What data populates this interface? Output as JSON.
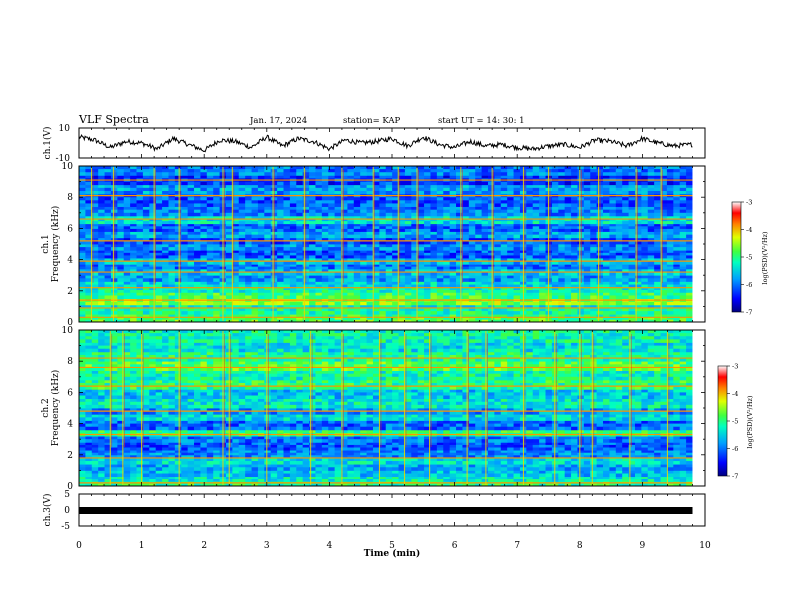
{
  "header": {
    "title": "VLF Spectra",
    "date": "Jan. 17, 2024",
    "station": "station= KAP",
    "start": "start  UT =   14: 30: 1"
  },
  "chart_data": [
    {
      "type": "line",
      "panel": "ch1-waveform",
      "ylabel": "ch.1(V)",
      "ylim": [
        -10,
        10
      ],
      "yticks": [
        "10",
        "-10"
      ],
      "xlim": [
        0,
        9.8
      ],
      "x": [
        0,
        0.25,
        0.5,
        0.75,
        1,
        1.25,
        1.5,
        1.75,
        2,
        2.25,
        2.5,
        2.75,
        3,
        3.25,
        3.5,
        3.75,
        4,
        4.25,
        4.5,
        4.75,
        5,
        5.25,
        5.5,
        5.75,
        6,
        6.25,
        6.5,
        6.75,
        7,
        7.25,
        7.5,
        7.75,
        8,
        8.25,
        8.5,
        8.75,
        9,
        9.25,
        9.5,
        9.8
      ],
      "y": [
        4,
        2,
        -3,
        1,
        0,
        -4,
        3,
        -1,
        -5,
        2,
        1,
        -3,
        4,
        -2,
        3,
        1,
        -4,
        2,
        0,
        1,
        3,
        -2,
        4,
        -1,
        -3,
        1,
        -2,
        -1,
        -3,
        -4,
        -2,
        -1,
        -3,
        2,
        1,
        -2,
        3,
        0,
        -2,
        -1
      ]
    },
    {
      "type": "heatmap",
      "panel": "ch1-spectrogram",
      "ylabel": "ch.1\nFrequency (kHz)",
      "ylim": [
        0,
        10
      ],
      "xlim": [
        0,
        9.8
      ],
      "yticks": [
        "0",
        "2",
        "4",
        "6",
        "8",
        "10"
      ],
      "colorbar": {
        "label": "log(PSD)(V²/Hz)",
        "range": [
          -7,
          -3
        ],
        "ticks": [
          "-3",
          "-4",
          "-5",
          "-6",
          "-7"
        ]
      },
      "band_levels_kHz_lo_hi_level": [
        [
          0.0,
          0.3,
          0.55
        ],
        [
          0.3,
          0.5,
          0.5
        ],
        [
          0.5,
          0.9,
          0.47
        ],
        [
          0.9,
          1.1,
          0.42
        ],
        [
          1.1,
          1.5,
          0.6
        ],
        [
          1.5,
          1.9,
          0.52
        ],
        [
          1.9,
          2.2,
          0.45
        ],
        [
          2.2,
          2.6,
          0.38
        ],
        [
          2.6,
          3.0,
          0.3
        ],
        [
          3.0,
          3.4,
          0.34
        ],
        [
          3.4,
          3.7,
          0.25
        ],
        [
          3.7,
          4.1,
          0.33
        ],
        [
          4.1,
          4.6,
          0.22
        ],
        [
          4.6,
          5.0,
          0.28
        ],
        [
          5.0,
          5.4,
          0.2
        ],
        [
          5.4,
          5.8,
          0.31
        ],
        [
          5.8,
          6.3,
          0.24
        ],
        [
          6.3,
          6.8,
          0.4
        ],
        [
          6.8,
          7.4,
          0.27
        ],
        [
          7.4,
          8.2,
          0.22
        ],
        [
          8.2,
          8.8,
          0.3
        ],
        [
          8.8,
          9.4,
          0.18
        ],
        [
          9.4,
          10,
          0.26
        ]
      ],
      "horizontal_lines_kHz": [
        0.3,
        0.9,
        1.4,
        2.2,
        3.2,
        3.9,
        5.2,
        6.6,
        8.1,
        9.1
      ],
      "vertical_events_min": [
        0.2,
        0.55,
        1.2,
        1.6,
        2.3,
        2.45,
        3.1,
        3.6,
        4.2,
        4.7,
        5.1,
        5.4,
        6.1,
        6.6,
        7.1,
        7.5,
        8.0,
        8.3,
        8.9,
        9.3
      ]
    },
    {
      "type": "heatmap",
      "panel": "ch2-spectrogram",
      "ylabel": "ch.2\nFrequency (kHz)",
      "ylim": [
        0,
        10
      ],
      "xlim": [
        0,
        9.8
      ],
      "yticks": [
        "0",
        "2",
        "4",
        "6",
        "8",
        "10"
      ],
      "colorbar": {
        "label": "log(PSD)(V²/Hz)",
        "range": [
          -7,
          -3
        ],
        "ticks": [
          "-3",
          "-4",
          "-5",
          "-6",
          "-7"
        ]
      },
      "band_levels_kHz_lo_hi_level": [
        [
          0.0,
          0.3,
          0.5
        ],
        [
          0.3,
          0.6,
          0.42
        ],
        [
          0.6,
          1.0,
          0.35
        ],
        [
          1.0,
          1.4,
          0.32
        ],
        [
          1.4,
          1.8,
          0.4
        ],
        [
          1.8,
          2.3,
          0.28
        ],
        [
          2.3,
          2.8,
          0.22
        ],
        [
          2.8,
          3.2,
          0.25
        ],
        [
          3.2,
          3.6,
          0.5
        ],
        [
          3.6,
          4.2,
          0.24
        ],
        [
          4.2,
          4.6,
          0.38
        ],
        [
          4.6,
          5.0,
          0.3
        ],
        [
          5.0,
          5.6,
          0.42
        ],
        [
          5.6,
          6.2,
          0.36
        ],
        [
          6.2,
          6.8,
          0.5
        ],
        [
          6.8,
          7.4,
          0.45
        ],
        [
          7.4,
          8.0,
          0.55
        ],
        [
          8.0,
          8.6,
          0.48
        ],
        [
          8.6,
          9.2,
          0.4
        ],
        [
          9.2,
          10,
          0.45
        ]
      ],
      "horizontal_lines_kHz": [
        0.2,
        1.8,
        3.3,
        4.8,
        6.4,
        7.6,
        8.2
      ],
      "vertical_events_min": [
        0.5,
        0.7,
        1.0,
        1.6,
        2.3,
        2.4,
        3.0,
        3.7,
        4.2,
        4.8,
        5.2,
        5.6,
        6.2,
        6.5,
        7.1,
        7.6,
        8.0,
        8.2,
        8.8,
        9.4
      ]
    },
    {
      "type": "line",
      "panel": "ch3-waveform",
      "ylabel": "ch.3(V)",
      "ylim": [
        -5,
        5
      ],
      "yticks": [
        "5",
        "0",
        "-5"
      ],
      "xlim": [
        0,
        9.8
      ],
      "x": [
        0,
        9.8
      ],
      "y": [
        -0.2,
        -0.2
      ]
    }
  ],
  "x_axis": {
    "label": "Time (min)",
    "ticks": [
      "0",
      "1",
      "2",
      "3",
      "4",
      "5",
      "6",
      "7",
      "8",
      "9",
      "10"
    ]
  }
}
